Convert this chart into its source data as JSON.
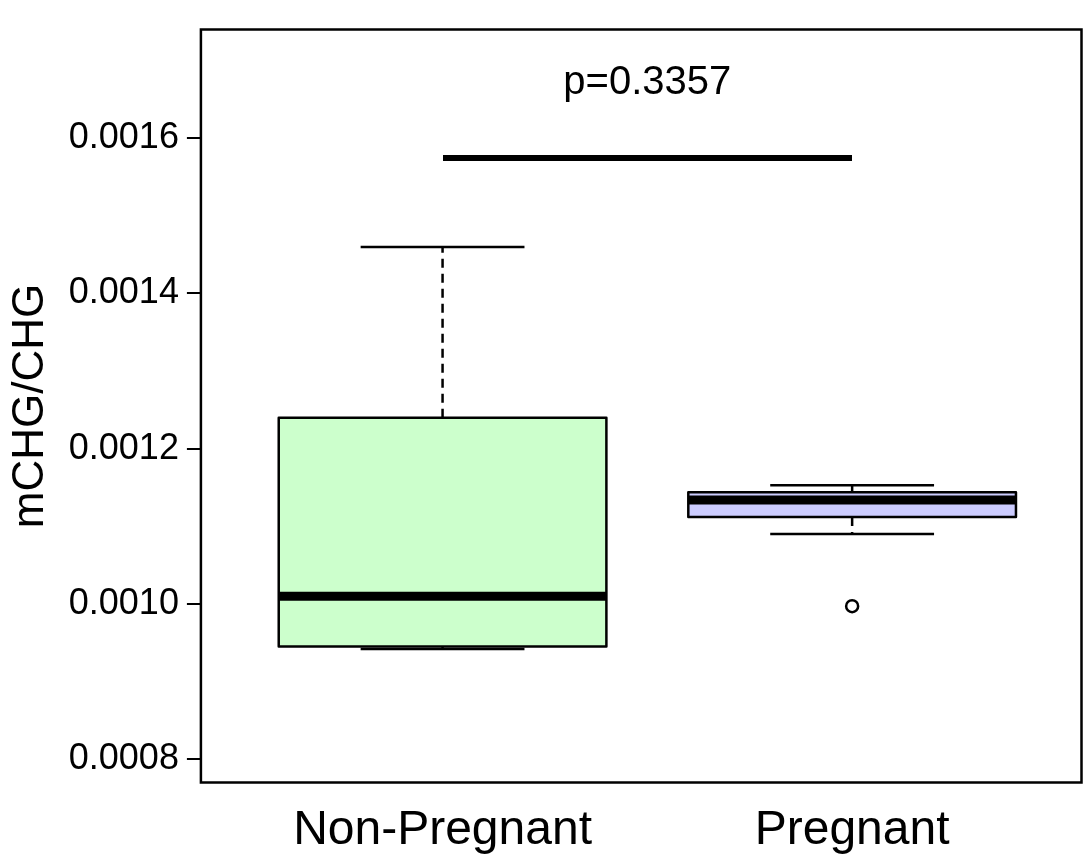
{
  "chart_data": {
    "type": "box",
    "ylabel": "mCHG/CHG",
    "categories": [
      "Non-Pregnant",
      "Pregnant"
    ],
    "boxes": [
      {
        "low": 0.000942,
        "q1": 0.000945,
        "median": 0.00101,
        "q3": 0.00124,
        "high": 0.00146
      },
      {
        "low": 0.00109,
        "q1": 0.001112,
        "median": 0.001134,
        "q3": 0.001144,
        "high": 0.001153,
        "outliers": [
          0.000997
        ]
      }
    ],
    "colors": [
      "#ccffcc",
      "#ccccff"
    ],
    "ylim": [
      0.00077,
      0.00174
    ],
    "yticks": [
      {
        "value": 0.0008,
        "label": "0.0008"
      },
      {
        "value": 0.001,
        "label": "0.0010"
      },
      {
        "value": 0.0012,
        "label": "0.0012"
      },
      {
        "value": 0.0014,
        "label": "0.0014"
      },
      {
        "value": 0.0016,
        "label": "0.0016"
      }
    ],
    "grid": false,
    "legend": false,
    "annotations": [
      "p=0.3357"
    ]
  }
}
